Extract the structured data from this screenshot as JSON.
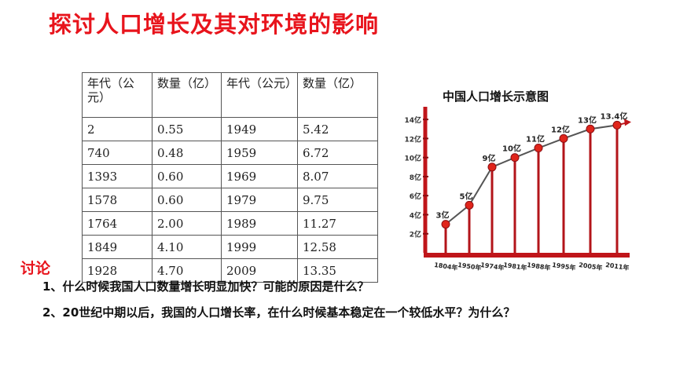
{
  "title": "探讨人口增长及其对环境的影响",
  "table": {
    "headers": [
      "年代（公元）",
      "数量（亿）",
      "年代（公元）",
      "数量（亿）"
    ],
    "rows": [
      [
        "2",
        "0.55",
        "1949",
        "5.42"
      ],
      [
        "740",
        "0.48",
        "1959",
        "6.72"
      ],
      [
        "1393",
        "0.60",
        "1969",
        "8.07"
      ],
      [
        "1578",
        "0.60",
        "1979",
        "9.75"
      ],
      [
        "1764",
        "2.00",
        "1989",
        "11.27"
      ],
      [
        "1849",
        "4.10",
        "1999",
        "12.58"
      ],
      [
        "1928",
        "4.70",
        "2009",
        "13.35"
      ]
    ]
  },
  "chart_data": {
    "type": "line",
    "title": "中国人口增长示意图",
    "categories": [
      "1804年",
      "1950年",
      "1974年",
      "1981年",
      "1988年",
      "1995年",
      "2005年",
      "2011年"
    ],
    "series": [
      {
        "values": [
          3,
          5,
          9,
          10,
          11,
          12,
          13,
          13.4
        ]
      }
    ],
    "point_labels": [
      "3亿",
      "5亿",
      "9亿",
      "10亿",
      "11亿",
      "12亿",
      "13亿",
      "13.4亿"
    ],
    "y_ticks": [
      "2亿",
      "4亿",
      "6亿",
      "8亿",
      "10亿",
      "12亿",
      "14亿"
    ],
    "ylim": [
      0,
      15
    ],
    "xlabel": "",
    "ylabel": "",
    "colors": {
      "line": "#555555",
      "marker": "#e0251b",
      "stem": "#b3141a",
      "axis": "#c0151a"
    }
  },
  "discussion": {
    "label": "讨论",
    "questions": [
      "1、什么时候我国人口数量增长明显加快？可能的原因是什么？",
      "2、20世纪中期以后，我国的人口增长率，在什么时候基本稳定在一个较低水平？为什么？"
    ]
  }
}
